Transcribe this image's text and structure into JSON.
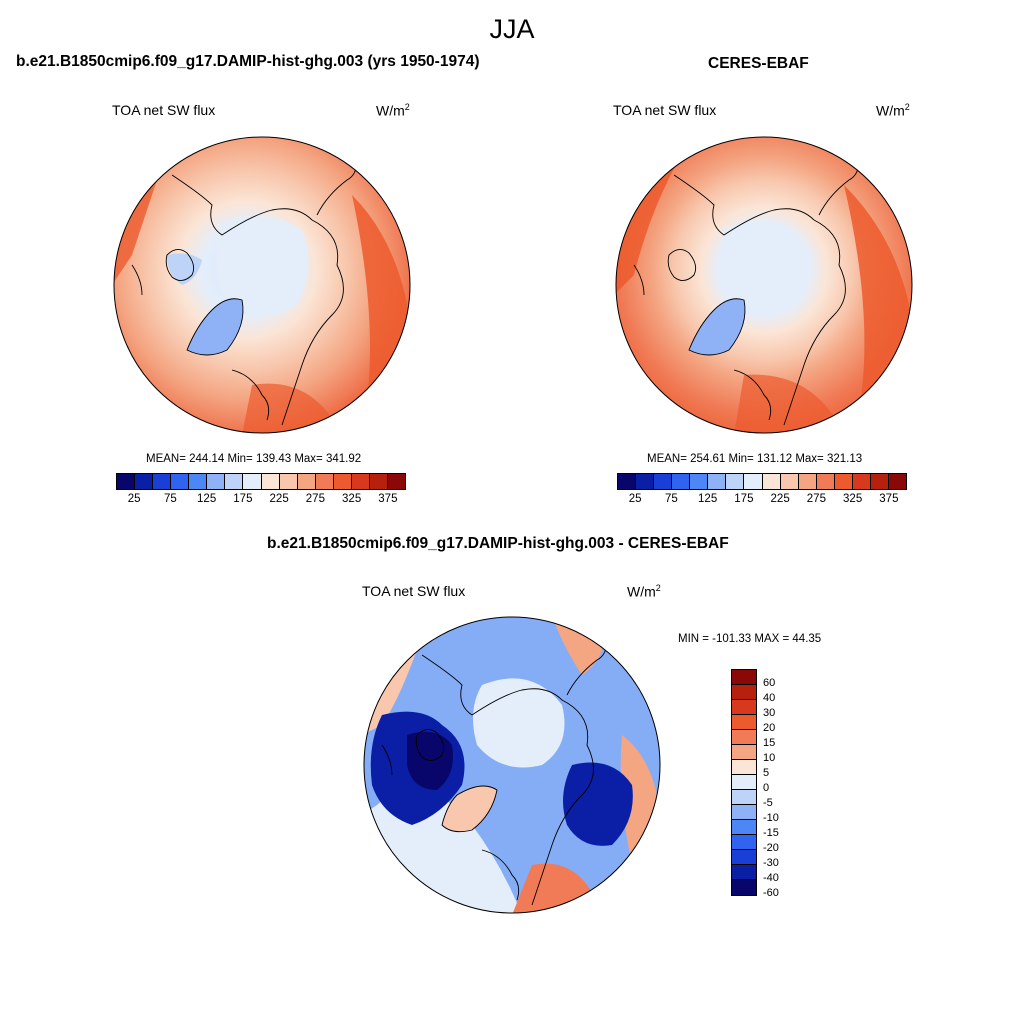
{
  "suptitle": "JJA",
  "panel_left": {
    "title": "b.e21.B1850cmip6.f09_g17.DAMIP-hist-ghg.003 (yrs 1950-1974)",
    "variable": "TOA net SW flux",
    "units": "W/m",
    "units_sup": "2",
    "stats": "MEAN= 244.14  Min= 139.43  Max= 341.92"
  },
  "panel_right": {
    "title": "CERES-EBAF",
    "variable": "TOA net SW flux",
    "units": "W/m",
    "units_sup": "2",
    "stats": "MEAN= 254.61  Min= 131.12  Max= 321.13"
  },
  "panel_diff": {
    "title": "b.e21.B1850cmip6.f09_g17.DAMIP-hist-ghg.003 - CERES-EBAF",
    "variable": "TOA net SW flux",
    "units": "W/m",
    "units_sup": "2",
    "stats": "MIN = -101.33 MAX =  44.35"
  },
  "colorbar_abs": {
    "colors": [
      "#08066b",
      "#0b1fa6",
      "#1a3fd6",
      "#2f63f0",
      "#4d86f5",
      "#8fb1f5",
      "#bdd3f7",
      "#e4eefb",
      "#fbe5d6",
      "#f8c7ad",
      "#f4a582",
      "#f07b56",
      "#ec5a2d",
      "#d8391e",
      "#b8200e",
      "#8a0808"
    ],
    "ticks": [
      "25",
      "75",
      "125",
      "175",
      "225",
      "275",
      "325",
      "375"
    ]
  },
  "colorbar_diff": {
    "colors": [
      "#8a0808",
      "#b8200e",
      "#d8391e",
      "#ec5a2d",
      "#f07b56",
      "#f4a582",
      "#fbe5d6",
      "#e4eefb",
      "#bdd3f7",
      "#8fb1f5",
      "#4d86f5",
      "#2f63f0",
      "#1a3fd6",
      "#0b1fa6",
      "#08066b"
    ],
    "ticks": [
      "60",
      "40",
      "30",
      "20",
      "15",
      "10",
      "5",
      "0",
      "-5",
      "-10",
      "-15",
      "-20",
      "-30",
      "-40",
      "-60"
    ]
  }
}
